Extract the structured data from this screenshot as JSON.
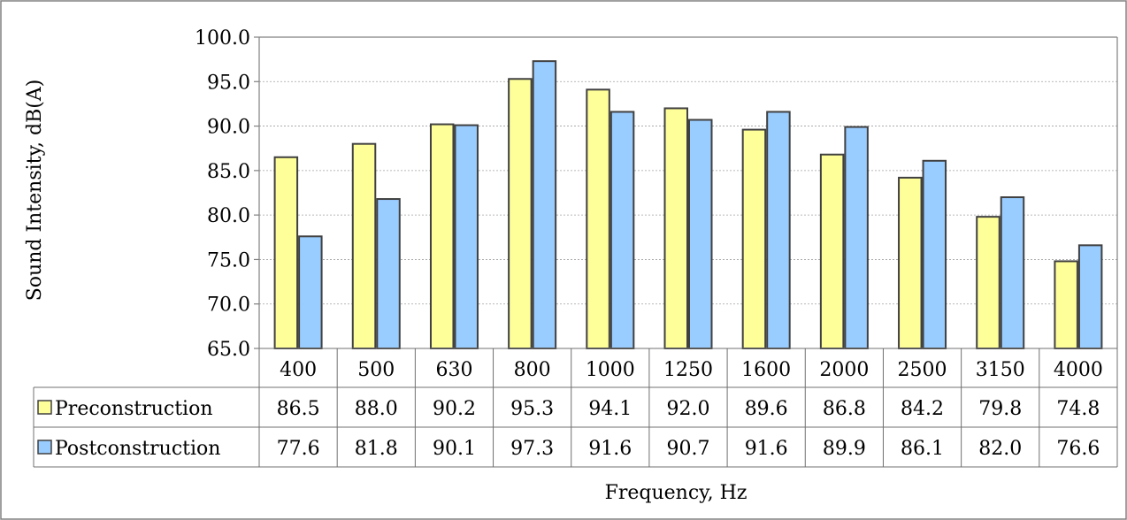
{
  "chart_data": {
    "type": "bar",
    "title": "",
    "xlabel": "Frequency, Hz",
    "ylabel": "Sound Intensity, dB(A)",
    "ylim": [
      65.0,
      100.0
    ],
    "yticks": [
      "65.0",
      "70.0",
      "75.0",
      "80.0",
      "85.0",
      "90.0",
      "95.0",
      "100.0"
    ],
    "categories": [
      "400",
      "500",
      "630",
      "800",
      "1000",
      "1250",
      "1600",
      "2000",
      "2500",
      "3150",
      "4000"
    ],
    "series": [
      {
        "name": "Preconstruction",
        "color": "#ffff99",
        "values": [
          86.5,
          88.0,
          90.2,
          95.3,
          94.1,
          92.0,
          89.6,
          86.8,
          84.2,
          79.8,
          74.8
        ],
        "labels": [
          "86.5",
          "88.0",
          "90.2",
          "95.3",
          "94.1",
          "92.0",
          "89.6",
          "86.8",
          "84.2",
          "79.8",
          "74.8"
        ]
      },
      {
        "name": "Postconstruction",
        "color": "#99ccff",
        "values": [
          77.6,
          81.8,
          90.1,
          97.3,
          91.6,
          90.7,
          91.6,
          89.9,
          86.1,
          82.0,
          76.6
        ],
        "labels": [
          "77.6",
          "81.8",
          "90.1",
          "97.3",
          "91.6",
          "90.7",
          "91.6",
          "89.9",
          "86.1",
          "82.0",
          "76.6"
        ]
      }
    ],
    "grid": true,
    "legend": "data-table"
  }
}
